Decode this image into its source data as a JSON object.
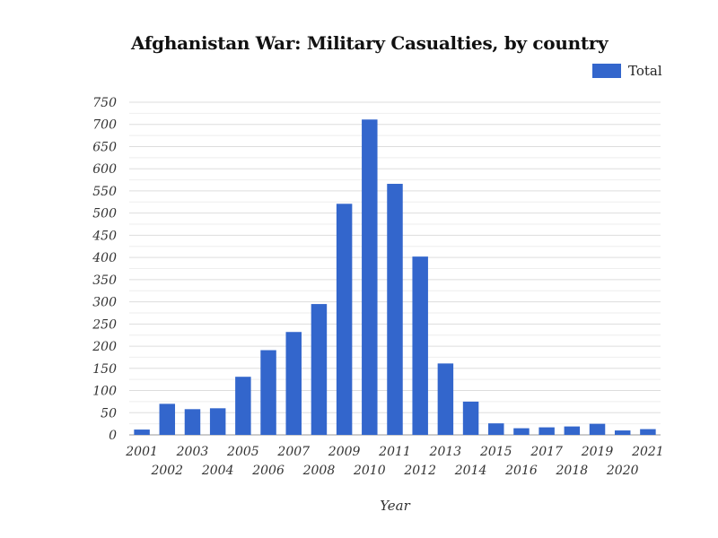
{
  "chart_data": {
    "type": "bar",
    "title": "Afghanistan War: Military Casualties, by country",
    "xlabel": "Year",
    "ylabel": "",
    "ylim": [
      0,
      750
    ],
    "yticks": [
      0,
      50,
      100,
      150,
      200,
      250,
      300,
      350,
      400,
      450,
      500,
      550,
      600,
      650,
      700,
      750
    ],
    "grid": true,
    "legend_position": "top-right",
    "bar_color": "#3366cc",
    "categories": [
      "2001",
      "2002",
      "2003",
      "2004",
      "2005",
      "2006",
      "2007",
      "2008",
      "2009",
      "2010",
      "2011",
      "2012",
      "2013",
      "2014",
      "2015",
      "2016",
      "2017",
      "2018",
      "2019",
      "2020",
      "2021"
    ],
    "series": [
      {
        "name": "Total",
        "values": [
          12,
          70,
          58,
          60,
          131,
          191,
          232,
          295,
          521,
          711,
          566,
          402,
          161,
          75,
          26,
          15,
          17,
          19,
          25,
          10,
          13
        ]
      }
    ]
  }
}
